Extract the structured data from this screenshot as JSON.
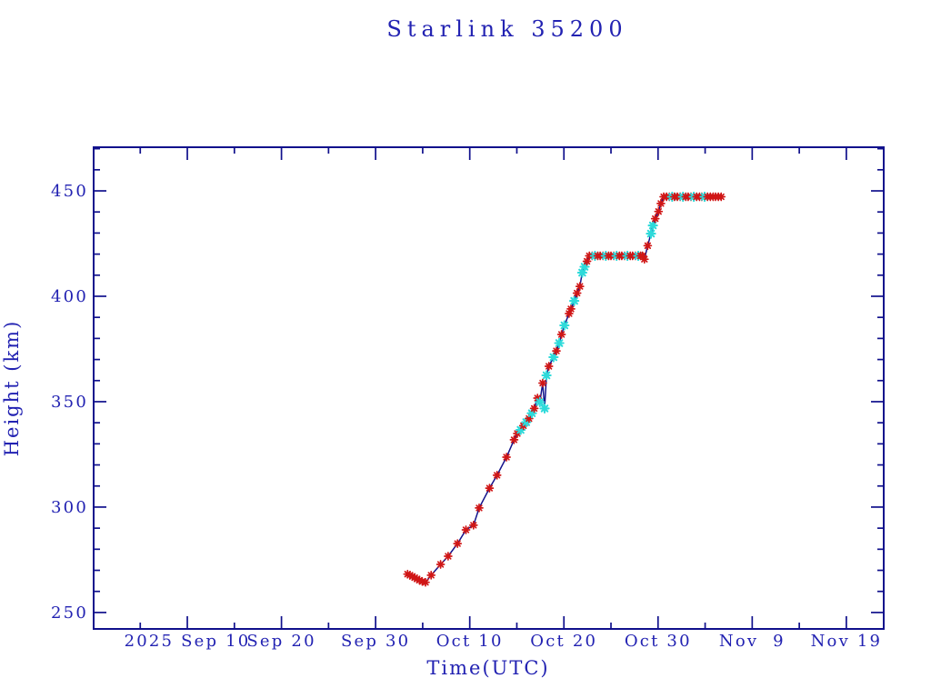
{
  "title": "Starlink 35200",
  "colors": {
    "text_blue": "#2222b2",
    "frame_navy": "#10108c",
    "line_navy": "#14148c",
    "marker_red": "#d01616",
    "marker_cyan": "#2edada",
    "background": "#ffffff"
  },
  "chart_data": {
    "type": "line",
    "title": "Starlink 35200",
    "xlabel": "Time(UTC)",
    "ylabel": "Height (km)",
    "x_unit": "days since 2025-09-01 UTC",
    "xlim": [
      -0.95,
      82.97
    ],
    "ylim": [
      242.2,
      470.7
    ],
    "grid": false,
    "legend": "none",
    "x_major_ticks": [
      {
        "day": 9,
        "label": "2025 Sep 10"
      },
      {
        "day": 19,
        "label": "Sep 20"
      },
      {
        "day": 29,
        "label": "Sep 30"
      },
      {
        "day": 39,
        "label": "Oct 10"
      },
      {
        "day": 49,
        "label": "Oct 20"
      },
      {
        "day": 59,
        "label": "Oct 30"
      },
      {
        "day": 69,
        "label": "Nov  9"
      },
      {
        "day": 79,
        "label": "Nov 19"
      }
    ],
    "x_minor_tick_days": [
      4,
      14,
      24,
      34,
      44,
      54,
      64,
      74
    ],
    "y_major_ticks": [
      250,
      300,
      350,
      400,
      450
    ],
    "y_minor_step": 10,
    "series": [
      {
        "name": "height-km",
        "line_color": "#14148c",
        "marker_colors": {
          "r": "#d01616",
          "c": "#2edada"
        },
        "points": [
          [
            32.4,
            268.2,
            "r"
          ],
          [
            32.65,
            267.7,
            "r"
          ],
          [
            32.9,
            267.1,
            "r"
          ],
          [
            33.15,
            266.5,
            "r"
          ],
          [
            33.4,
            265.9,
            "r"
          ],
          [
            33.65,
            265.3,
            "r"
          ],
          [
            33.95,
            264.7,
            "r"
          ],
          [
            34.3,
            264.3,
            "r"
          ],
          [
            34.9,
            267.7,
            "r"
          ],
          [
            35.9,
            272.8,
            "r"
          ],
          [
            36.7,
            276.7,
            "r"
          ],
          [
            37.7,
            282.7,
            "r"
          ],
          [
            38.6,
            289.2,
            "r"
          ],
          [
            39.4,
            291.4,
            "r"
          ],
          [
            40.0,
            299.6,
            "r"
          ],
          [
            41.1,
            309.0,
            "r"
          ],
          [
            41.9,
            315.1,
            "r"
          ],
          [
            42.9,
            323.7,
            "r"
          ],
          [
            43.7,
            331.9,
            "r"
          ],
          [
            44.05,
            334.9,
            "r"
          ],
          [
            44.4,
            336.6,
            "c"
          ],
          [
            44.7,
            338.6,
            "r"
          ],
          [
            45.0,
            340.3,
            "c"
          ],
          [
            45.3,
            342.0,
            "r"
          ],
          [
            45.6,
            344.5,
            "c"
          ],
          [
            45.85,
            346.8,
            "r"
          ],
          [
            46.2,
            351.7,
            "r"
          ],
          [
            46.45,
            349.8,
            "c"
          ],
          [
            46.75,
            358.8,
            "r"
          ],
          [
            46.95,
            346.8,
            "c"
          ],
          [
            47.15,
            362.5,
            "c"
          ],
          [
            47.4,
            366.8,
            "r"
          ],
          [
            47.9,
            371.1,
            "c"
          ],
          [
            48.2,
            374.1,
            "r"
          ],
          [
            48.5,
            377.8,
            "c"
          ],
          [
            48.75,
            381.9,
            "r"
          ],
          [
            49.05,
            386.2,
            "c"
          ],
          [
            49.55,
            391.8,
            "r"
          ],
          [
            49.75,
            394.0,
            "r"
          ],
          [
            50.1,
            397.8,
            "c"
          ],
          [
            50.4,
            401.5,
            "r"
          ],
          [
            50.7,
            404.7,
            "r"
          ],
          [
            50.95,
            411.2,
            "c"
          ],
          [
            51.2,
            414.0,
            "c"
          ],
          [
            51.45,
            416.6,
            "r"
          ],
          [
            51.7,
            419.2,
            "r"
          ],
          [
            52.0,
            419.2,
            "r"
          ],
          [
            52.3,
            419.2,
            "c"
          ],
          [
            52.6,
            419.2,
            "r"
          ],
          [
            52.85,
            419.2,
            "r"
          ],
          [
            53.15,
            419.2,
            "r"
          ],
          [
            53.45,
            419.2,
            "c"
          ],
          [
            53.75,
            419.2,
            "r"
          ],
          [
            54.0,
            419.2,
            "r"
          ],
          [
            54.3,
            419.2,
            "r"
          ],
          [
            54.6,
            419.2,
            "c"
          ],
          [
            54.9,
            419.2,
            "r"
          ],
          [
            55.15,
            419.2,
            "r"
          ],
          [
            55.45,
            419.2,
            "r"
          ],
          [
            55.75,
            419.2,
            "c"
          ],
          [
            56.05,
            419.2,
            "r"
          ],
          [
            56.3,
            419.2,
            "r"
          ],
          [
            56.6,
            419.2,
            "r"
          ],
          [
            56.9,
            419.2,
            "c"
          ],
          [
            57.15,
            419.2,
            "r"
          ],
          [
            57.35,
            419.2,
            "r"
          ],
          [
            57.55,
            417.6,
            "r"
          ],
          [
            57.9,
            424.0,
            "r"
          ],
          [
            58.25,
            429.7,
            "c"
          ],
          [
            58.45,
            433.6,
            "c"
          ],
          [
            58.7,
            436.8,
            "r"
          ],
          [
            59.05,
            440.2,
            "r"
          ],
          [
            59.3,
            444.0,
            "r"
          ],
          [
            59.6,
            447.2,
            "r"
          ],
          [
            59.9,
            447.2,
            "r"
          ],
          [
            60.2,
            447.2,
            "r"
          ],
          [
            60.5,
            447.2,
            "c"
          ],
          [
            60.75,
            447.2,
            "r"
          ],
          [
            61.05,
            447.2,
            "r"
          ],
          [
            61.35,
            447.2,
            "r"
          ],
          [
            61.65,
            447.2,
            "c"
          ],
          [
            61.95,
            447.2,
            "r"
          ],
          [
            62.2,
            447.2,
            "r"
          ],
          [
            62.5,
            447.2,
            "r"
          ],
          [
            62.8,
            447.2,
            "c"
          ],
          [
            63.1,
            447.2,
            "r"
          ],
          [
            63.4,
            447.2,
            "r"
          ],
          [
            63.65,
            447.2,
            "r"
          ],
          [
            63.95,
            447.2,
            "c"
          ],
          [
            64.25,
            447.2,
            "r"
          ],
          [
            64.55,
            447.2,
            "r"
          ],
          [
            64.85,
            447.2,
            "r"
          ],
          [
            65.1,
            447.2,
            "r"
          ],
          [
            65.4,
            447.2,
            "r"
          ],
          [
            65.7,
            447.2,
            "r"
          ]
        ]
      }
    ]
  }
}
